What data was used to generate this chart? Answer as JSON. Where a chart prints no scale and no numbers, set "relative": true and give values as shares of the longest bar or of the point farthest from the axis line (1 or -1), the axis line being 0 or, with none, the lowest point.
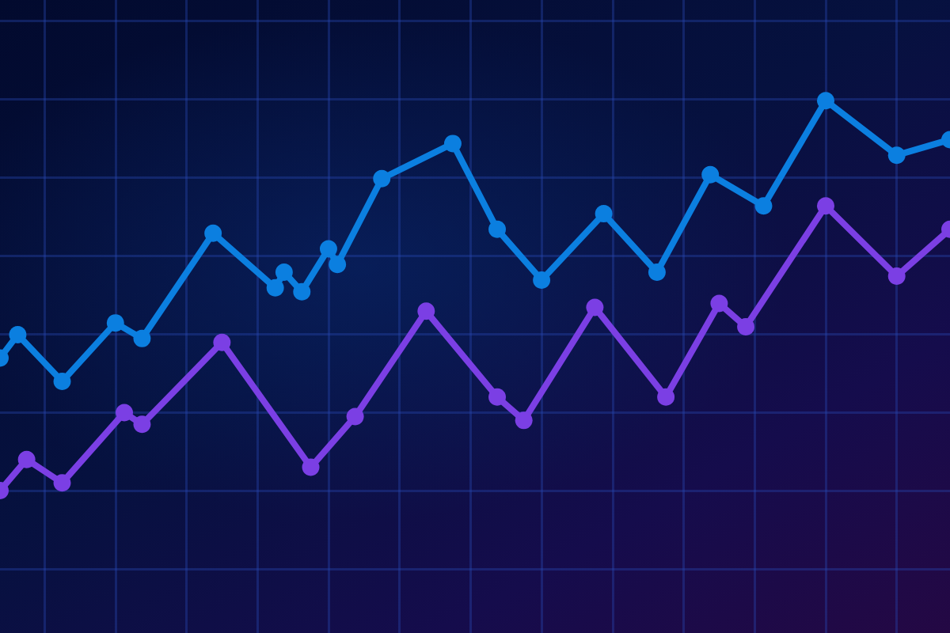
{
  "chart_data": {
    "type": "line",
    "relative": true,
    "tick_labels": false,
    "grid": true,
    "marker": "circle",
    "line_style": "solid",
    "categories": [
      null,
      null,
      null,
      null,
      null,
      null,
      null,
      null,
      null,
      null,
      null,
      null,
      null,
      null,
      null,
      null,
      null,
      null,
      null,
      null,
      null,
      null,
      null,
      null,
      null,
      null,
      null,
      null,
      null,
      null,
      null,
      null,
      null,
      null,
      null,
      null,
      null,
      null,
      null,
      null,
      null,
      null,
      null,
      null,
      null,
      null,
      null,
      null,
      null,
      null,
      null,
      null,
      null,
      null,
      null,
      null,
      null,
      null,
      null,
      null,
      null,
      null,
      null,
      null,
      null,
      null,
      null,
      null,
      null,
      null,
      null,
      null,
      null,
      null,
      null,
      null,
      null,
      null,
      null,
      null,
      null,
      null,
      null,
      null,
      null,
      null,
      null,
      null,
      null,
      null,
      null,
      null,
      null,
      null,
      null,
      null,
      null,
      null,
      null,
      null,
      null,
      null,
      null,
      null,
      null,
      null,
      null,
      null
    ],
    "series": [
      {
        "color": "#0b7fe0",
        "values": [
          0.34,
          null,
          0.4,
          null,
          null,
          null,
          null,
          0.28,
          null,
          null,
          null,
          null,
          null,
          0.43,
          null,
          null,
          0.39,
          null,
          null,
          null,
          null,
          null,
          null,
          null,
          0.66,
          null,
          null,
          null,
          null,
          null,
          null,
          0.52,
          0.56,
          null,
          0.51,
          null,
          null,
          0.62,
          0.58,
          null,
          null,
          null,
          null,
          0.8,
          null,
          null,
          null,
          null,
          null,
          null,
          null,
          0.89,
          null,
          null,
          null,
          null,
          0.67,
          null,
          null,
          null,
          null,
          0.54,
          null,
          null,
          null,
          null,
          null,
          null,
          0.71,
          null,
          null,
          null,
          null,
          null,
          0.56,
          null,
          null,
          null,
          null,
          null,
          0.81,
          null,
          null,
          null,
          null,
          null,
          0.73,
          null,
          null,
          null,
          null,
          null,
          null,
          1.0,
          null,
          null,
          null,
          null,
          null,
          null,
          null,
          0.86,
          null,
          null,
          null,
          null,
          null,
          0.9
        ]
      },
      {
        "color": "#7b3fe4",
        "values": [
          0.0,
          null,
          null,
          0.08,
          null,
          null,
          null,
          0.02,
          null,
          null,
          null,
          null,
          null,
          null,
          0.2,
          null,
          0.17,
          null,
          null,
          null,
          null,
          null,
          null,
          null,
          null,
          0.38,
          null,
          null,
          null,
          null,
          null,
          null,
          null,
          null,
          null,
          0.06,
          null,
          null,
          null,
          null,
          0.19,
          null,
          null,
          null,
          null,
          null,
          null,
          null,
          0.46,
          null,
          null,
          null,
          null,
          null,
          null,
          null,
          0.24,
          null,
          null,
          0.18,
          null,
          null,
          null,
          null,
          null,
          null,
          null,
          0.47,
          null,
          null,
          null,
          null,
          null,
          null,
          null,
          0.24,
          null,
          null,
          null,
          null,
          null,
          0.48,
          null,
          null,
          0.42,
          null,
          null,
          null,
          null,
          null,
          null,
          null,
          null,
          0.73,
          null,
          null,
          null,
          null,
          null,
          null,
          null,
          0.55,
          null,
          null,
          null,
          null,
          null,
          0.67
        ]
      }
    ]
  }
}
